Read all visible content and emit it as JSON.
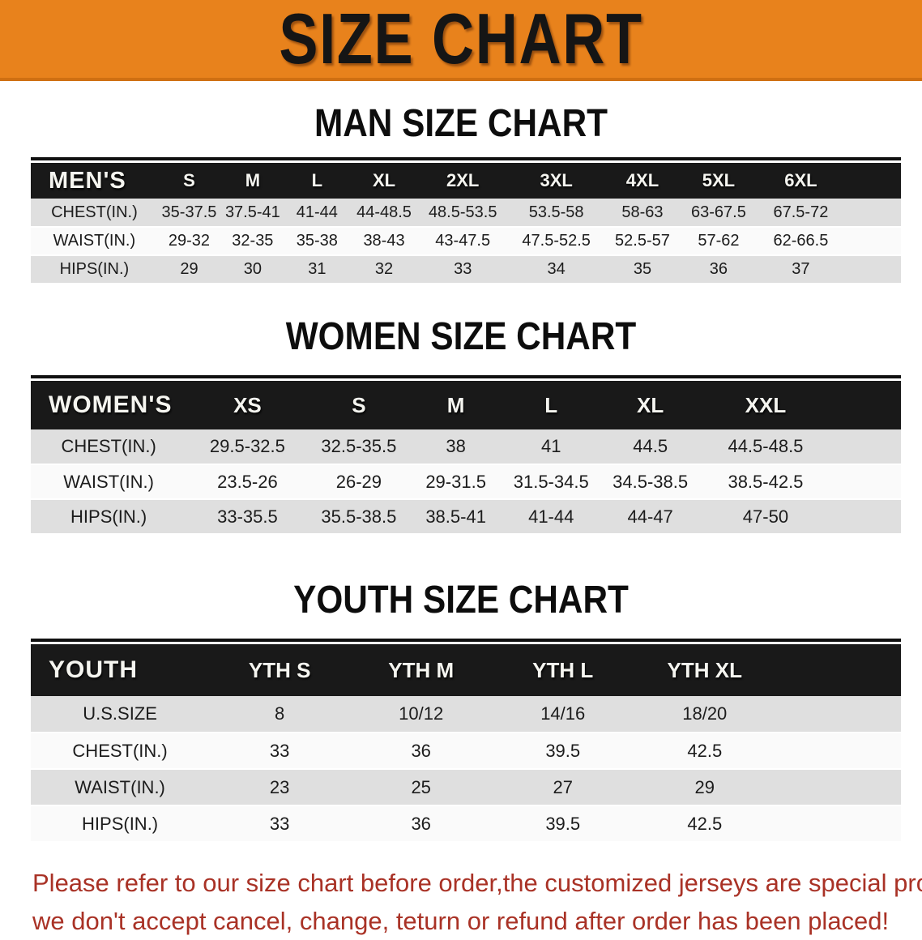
{
  "banner": {
    "title": "SIZE CHART"
  },
  "colors": {
    "banner_bg": "#E8821C",
    "banner_border": "#CF6F12",
    "header_bar": "#191919",
    "row_gray": "#DFDFDF",
    "row_white": "#FAFAFA",
    "notice_red": "#A93226"
  },
  "sections": [
    {
      "heading": "MAN SIZE CHART",
      "table": {
        "header_label": "MEN'S",
        "columns": [
          "S",
          "M",
          "L",
          "XL",
          "2XL",
          "3XL",
          "4XL",
          "5XL",
          "6XL"
        ],
        "rows": [
          {
            "label": "CHEST(IN.)",
            "values": [
              "35-37.5",
              "37.5-41",
              "41-44",
              "44-48.5",
              "48.5-53.5",
              "53.5-58",
              "58-63",
              "63-67.5",
              "67.5-72"
            ]
          },
          {
            "label": "WAIST(IN.)",
            "values": [
              "29-32",
              "32-35",
              "35-38",
              "38-43",
              "43-47.5",
              "47.5-52.5",
              "52.5-57",
              "57-62",
              "62-66.5"
            ]
          },
          {
            "label": "HIPS(IN.)",
            "values": [
              "29",
              "30",
              "31",
              "32",
              "33",
              "34",
              "35",
              "36",
              "37"
            ]
          }
        ]
      }
    },
    {
      "heading": "WOMEN SIZE CHART",
      "table": {
        "header_label": "WOMEN'S",
        "columns": [
          "XS",
          "S",
          "M",
          "L",
          "XL",
          "XXL"
        ],
        "rows": [
          {
            "label": "CHEST(IN.)",
            "values": [
              "29.5-32.5",
              "32.5-35.5",
              "38",
              "41",
              "44.5",
              "44.5-48.5"
            ]
          },
          {
            "label": "WAIST(IN.)",
            "values": [
              "23.5-26",
              "26-29",
              "29-31.5",
              "31.5-34.5",
              "34.5-38.5",
              "38.5-42.5"
            ]
          },
          {
            "label": "HIPS(IN.)",
            "values": [
              "33-35.5",
              "35.5-38.5",
              "38.5-41",
              "41-44",
              "44-47",
              "47-50"
            ]
          }
        ]
      }
    },
    {
      "heading": "YOUTH SIZE CHART",
      "table": {
        "header_label": "YOUTH",
        "columns": [
          "YTH S",
          "YTH M",
          "YTH L",
          "YTH XL"
        ],
        "rows": [
          {
            "label": "U.S.SIZE",
            "values": [
              "8",
              "10/12",
              "14/16",
              "18/20"
            ]
          },
          {
            "label": "CHEST(IN.)",
            "values": [
              "33",
              "36",
              "39.5",
              "42.5"
            ]
          },
          {
            "label": "WAIST(IN.)",
            "values": [
              "23",
              "25",
              "27",
              "29"
            ]
          },
          {
            "label": "HIPS(IN.)",
            "values": [
              "33",
              "36",
              "39.5",
              "42.5"
            ]
          }
        ]
      }
    }
  ],
  "footer": {
    "line1": "Please refer to our size chart before order,the customized jerseys are special products,",
    "line2": "we don't accept cancel, change, teturn or refund after order has been placed!"
  }
}
